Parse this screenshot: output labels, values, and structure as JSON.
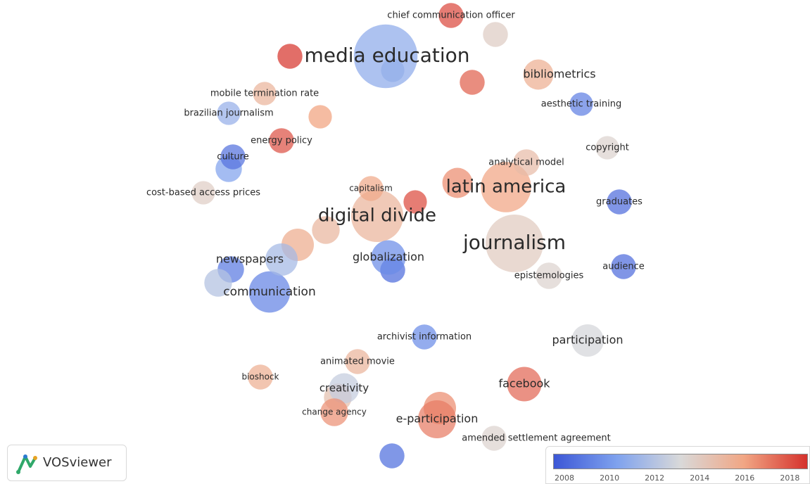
{
  "app": {
    "name": "VOSviewer"
  },
  "colors": {
    "scale": [
      "#3c57d6",
      "#7fa2ee",
      "#d9d9d9",
      "#f1a684",
      "#d5312c"
    ],
    "legend_bar": "#3b56d4"
  },
  "legend": {
    "min_year": 2007.5,
    "max_year": 2018.8,
    "ticks": [
      "2008",
      "2010",
      "2012",
      "2014",
      "2016",
      "2018"
    ]
  },
  "keywords": [
    {
      "label": "media education",
      "year": 2010.8,
      "weight": 60
    },
    {
      "label": "chief communication officer",
      "year": 2018.2,
      "weight": 6
    },
    {
      "label": "bibliometrics",
      "year": 2015.5,
      "weight": 10
    },
    {
      "label": "mobile termination rate",
      "year": 2015.2,
      "weight": 5
    },
    {
      "label": "brazilian journalism",
      "year": 2011,
      "weight": 5
    },
    {
      "label": "aesthetic training",
      "year": 2009,
      "weight": 5
    },
    {
      "label": "energy policy",
      "year": 2018,
      "weight": 6
    },
    {
      "label": "copyright",
      "year": 2013.5,
      "weight": 5
    },
    {
      "label": "culture",
      "year": 2008.5,
      "weight": 6
    },
    {
      "label": "analytical model",
      "year": 2014.8,
      "weight": 7
    },
    {
      "label": "cost-based access prices",
      "year": 2013.8,
      "weight": 5
    },
    {
      "label": "capitalism",
      "year": 2015.8,
      "weight": 6
    },
    {
      "label": "latin america",
      "year": 2016,
      "weight": 35
    },
    {
      "label": "graduates",
      "year": 2008.3,
      "weight": 6
    },
    {
      "label": "digital divide",
      "year": 2015.2,
      "weight": 38
    },
    {
      "label": "journalism",
      "year": 2014,
      "weight": 48
    },
    {
      "label": "newspapers",
      "year": 2011.5,
      "weight": 12
    },
    {
      "label": "globalization",
      "year": 2009.5,
      "weight": 14
    },
    {
      "label": "audience",
      "year": 2008.3,
      "weight": 6
    },
    {
      "label": "epistemologies",
      "year": 2013.5,
      "weight": 7
    },
    {
      "label": "communication",
      "year": 2009.2,
      "weight": 22
    },
    {
      "label": "archivist information",
      "year": 2009.5,
      "weight": 6
    },
    {
      "label": "participation",
      "year": 2013,
      "weight": 12
    },
    {
      "label": "animated movie",
      "year": 2015.2,
      "weight": 6
    },
    {
      "label": "bioshock",
      "year": 2015.5,
      "weight": 6
    },
    {
      "label": "creativity",
      "year": 2012.5,
      "weight": 10
    },
    {
      "label": "facebook",
      "year": 2017.5,
      "weight": 14
    },
    {
      "label": "change agency",
      "year": 2016.5,
      "weight": 8
    },
    {
      "label": "e-participation",
      "year": 2017,
      "weight": 18
    },
    {
      "label": "amended settlement agreement",
      "year": 2013.5,
      "weight": 6
    }
  ],
  "extra_nodes": [
    {
      "year": 2018.5,
      "weight": 6
    },
    {
      "year": 2017.5,
      "weight": 6
    },
    {
      "year": 2013.8,
      "weight": 6
    },
    {
      "year": 2016,
      "weight": 5
    },
    {
      "year": 2011.5,
      "weight": 5
    },
    {
      "year": 2009,
      "weight": 7
    },
    {
      "year": 2018,
      "weight": 5
    },
    {
      "year": 2016.5,
      "weight": 10
    },
    {
      "year": 2015.5,
      "weight": 12
    },
    {
      "year": 2015,
      "weight": 8
    },
    {
      "year": 2012,
      "weight": 8
    },
    {
      "year": 2008.5,
      "weight": 6
    },
    {
      "year": 2016.5,
      "weight": 12
    },
    {
      "year": 2014.5,
      "weight": 8
    },
    {
      "year": 2010.5,
      "weight": 7
    },
    {
      "year": 2008.6,
      "weight": 6
    }
  ]
}
